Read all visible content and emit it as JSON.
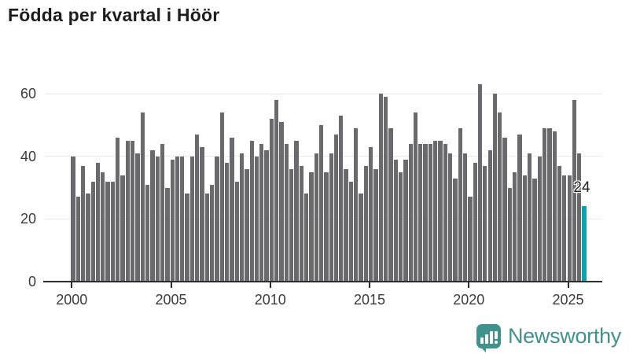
{
  "title": "Födda per kvartal i Höör",
  "colors": {
    "bar": "#6a6a6e",
    "highlight": "#0ba3ac",
    "grid": "#e8e8e8",
    "axis": "#2e2e2e",
    "tick_label": "#3b3b3b",
    "title_text": "#1d1d1f",
    "logo": "#41918c"
  },
  "annotation": {
    "last_value_label": "24"
  },
  "branding": {
    "logo_text": "Newsworthy"
  },
  "chart_data": {
    "type": "bar",
    "title": "Födda per kvartal i Höör",
    "x_unit": "quarter",
    "start_period": "2000Q1",
    "end_period": "2025Q4",
    "x_tick_labels": [
      "2000",
      "2005",
      "2010",
      "2015",
      "2020",
      "2025"
    ],
    "x_tick_every_n_bars": 20,
    "y_tick_labels": [
      "0",
      "20",
      "40",
      "60"
    ],
    "y_ticks": [
      0,
      20,
      40,
      60
    ],
    "ylim": [
      0,
      63
    ],
    "grid": true,
    "highlight_last_bar": true,
    "last_bar_label": "24",
    "values": [
      40,
      27,
      37,
      28,
      32,
      38,
      35,
      32,
      32,
      46,
      34,
      45,
      45,
      41,
      54,
      31,
      42,
      40,
      44,
      30,
      39,
      40,
      40,
      28,
      40,
      47,
      43,
      28,
      31,
      40,
      54,
      38,
      46,
      32,
      41,
      36,
      45,
      40,
      44,
      42,
      52,
      58,
      51,
      44,
      36,
      45,
      37,
      28,
      35,
      41,
      50,
      35,
      41,
      47,
      53,
      36,
      32,
      49,
      28,
      37,
      43,
      36,
      60,
      59,
      49,
      39,
      35,
      39,
      44,
      54,
      44,
      44,
      44,
      45,
      45,
      44,
      41,
      33,
      49,
      41,
      27,
      38,
      63,
      37,
      42,
      60,
      54,
      46,
      30,
      35,
      47,
      34,
      41,
      33,
      40,
      49,
      49,
      48,
      37,
      34,
      34,
      58,
      41,
      24
    ]
  }
}
